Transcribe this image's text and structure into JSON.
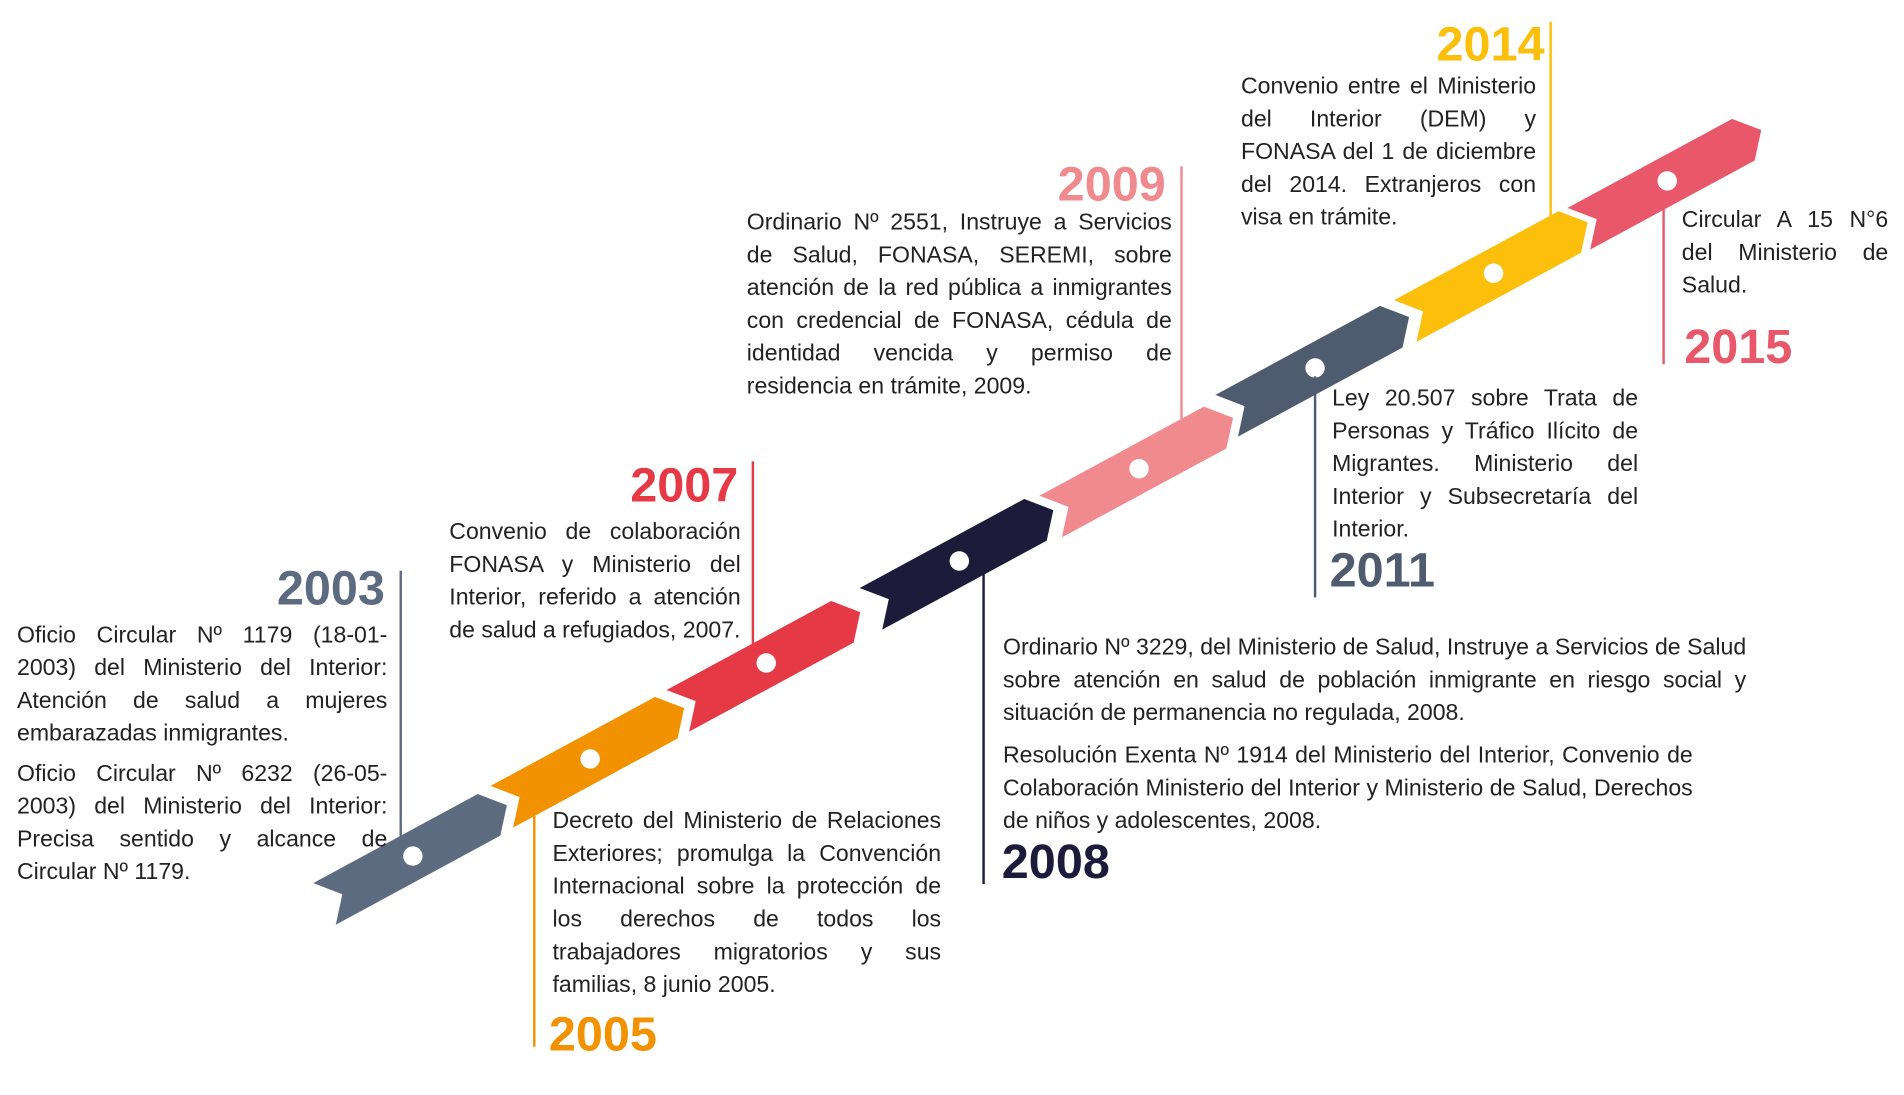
{
  "events": [
    {
      "year": "2003",
      "texts": [
        "Oficio Circular Nº 1179 (18-01-2003) del Ministerio del Interior: Atención de salud  a mujeres embarazadas inmigrantes.",
        "Oficio Circular Nº 6232 (26-05-2003) del Ministerio del Interior: Precisa sentido y alcance de Circular Nº 1179."
      ]
    },
    {
      "year": "2005",
      "texts": [
        "Decreto del Ministerio de Relaciones Exteriores; promulga la Convención Internacional sobre la protección de los derechos de todos los trabajadores migratorios y sus familias, 8 junio 2005."
      ]
    },
    {
      "year": "2007",
      "texts": [
        "Convenio de colaboración FONASA y Ministerio del Interior, referido a atención de salud a refugiados, 2007."
      ]
    },
    {
      "year": "2008",
      "texts": [
        "Ordinario Nº 3229, del Ministerio de Salud, Instruye a Servicios de Salud sobre atención en salud de población inmigrante en riesgo social y situación de permanencia no regulada, 2008.",
        "Resolución Exenta Nº 1914 del Ministerio del Interior, Convenio de Colaboración Ministerio del Interior y Ministerio de Salud, Derechos de niños y adolescentes, 2008."
      ]
    },
    {
      "year": "2009",
      "texts": [
        "Ordinario Nº 2551, Instruye a Servicios de Salud, FONASA, SEREMI, sobre atención de la red pública a inmigrantes con credencial de FONASA, cédula de identidad vencida y permiso de residencia en trámite, 2009."
      ]
    },
    {
      "year": "2011",
      "texts": [
        "Ley 20.507 sobre Trata de Personas y Tráfico Ilícito de Migrantes. Ministerio del Interior y Subsecretaría del Interior."
      ]
    },
    {
      "year": "2014",
      "texts": [
        "Convenio entre el Ministerio del Interior (DEM) y FONASA del 1 de diciembre del 2014. Extranjeros con visa en trámite."
      ]
    },
    {
      "year": "2015",
      "texts": [
        "Circular A 15 N°6 del Ministerio de Salud."
      ]
    }
  ]
}
